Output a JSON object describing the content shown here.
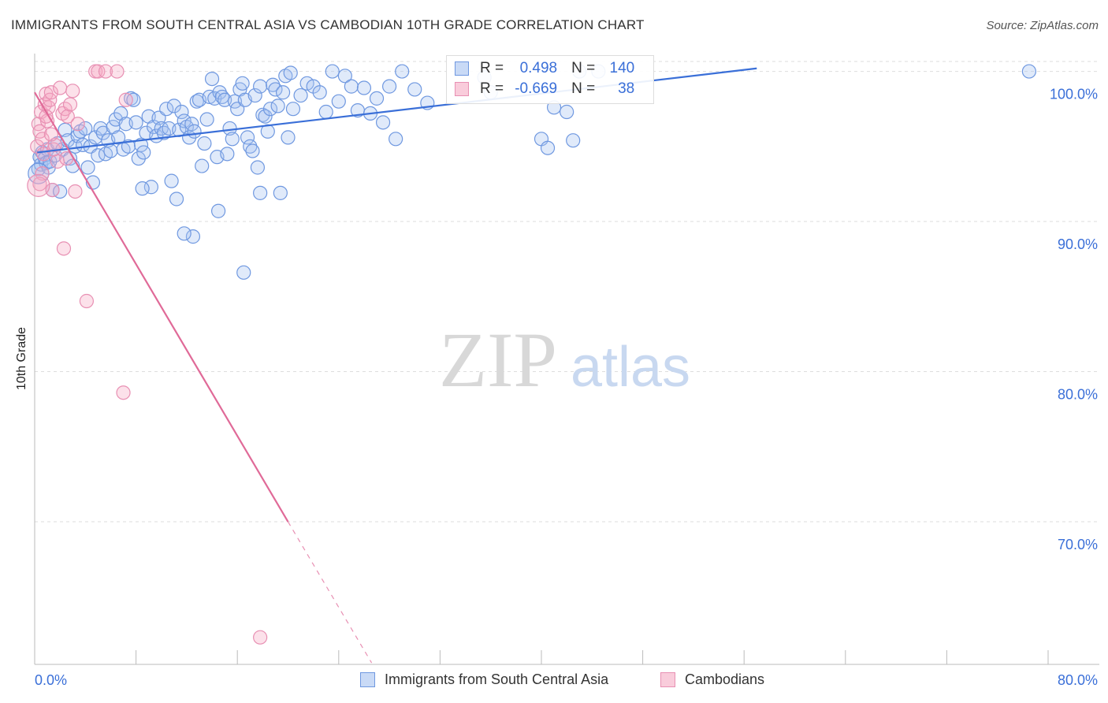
{
  "title": "IMMIGRANTS FROM SOUTH CENTRAL ASIA VS CAMBODIAN 10TH GRADE CORRELATION CHART",
  "source": "Source: ZipAtlas.com",
  "watermark": {
    "zip": "ZIP",
    "atlas": "atlas"
  },
  "colors": {
    "blue": "#3a6fd8",
    "blue_fill": "rgba(165,194,240,0.35)",
    "blue_stroke": "#6f98e0",
    "pink": "#e06a98",
    "pink_fill": "rgba(245,170,195,0.35)",
    "pink_stroke": "#e890b3",
    "axis_label": "#3a6fd8",
    "grid": "#dddddd"
  },
  "legend_top": {
    "rows": [
      {
        "r_label": "R =",
        "r_value": "0.498",
        "n_label": "N =",
        "n_value": "140"
      },
      {
        "r_label": "R =",
        "r_value": "-0.669",
        "n_label": "N =",
        "n_value": "38"
      }
    ]
  },
  "chart_data": {
    "type": "scatter",
    "title": "IMMIGRANTS FROM SOUTH CENTRAL ASIA VS CAMBODIAN 10TH GRADE CORRELATION CHART",
    "xlabel": "",
    "ylabel": "10th Grade",
    "xlim": [
      0,
      80
    ],
    "ylim": [
      60.5,
      101.5
    ],
    "x_tick_labels": [
      "0.0%",
      "80.0%"
    ],
    "y_ticks": [
      70,
      80,
      90,
      100
    ],
    "y_tick_labels": [
      "70.0%",
      "80.0%",
      "90.0%",
      "100.0%"
    ],
    "grid": true,
    "legend_position": "bottom",
    "series": [
      {
        "name": "Immigrants from South Central Asia",
        "color": "blue",
        "trend": {
          "x": [
            0.2,
            57.0
          ],
          "y": [
            94.6,
            100.2
          ]
        },
        "points": [
          [
            0.3,
            93.5
          ],
          [
            0.4,
            94.3
          ],
          [
            0.5,
            93.8
          ],
          [
            0.6,
            94.6
          ],
          [
            0.8,
            94.2
          ],
          [
            0.9,
            93.9
          ],
          [
            1.0,
            94.8
          ],
          [
            1.1,
            93.6
          ],
          [
            1.2,
            94.0
          ],
          [
            1.4,
            92.1
          ],
          [
            1.6,
            94.4
          ],
          [
            1.8,
            95.2
          ],
          [
            2.0,
            92.0
          ],
          [
            2.2,
            94.8
          ],
          [
            2.4,
            96.1
          ],
          [
            2.6,
            95.4
          ],
          [
            2.8,
            94.2
          ],
          [
            3.0,
            93.7
          ],
          [
            3.2,
            95.0
          ],
          [
            3.4,
            95.7
          ],
          [
            3.6,
            96.0
          ],
          [
            3.8,
            95.1
          ],
          [
            4.0,
            96.2
          ],
          [
            4.2,
            93.6
          ],
          [
            4.4,
            95.0
          ],
          [
            4.6,
            92.6
          ],
          [
            4.8,
            95.6
          ],
          [
            5.0,
            94.4
          ],
          [
            5.2,
            96.2
          ],
          [
            5.4,
            95.9
          ],
          [
            5.6,
            94.5
          ],
          [
            5.8,
            95.4
          ],
          [
            6.0,
            94.7
          ],
          [
            6.2,
            96.3
          ],
          [
            6.4,
            96.8
          ],
          [
            6.6,
            95.6
          ],
          [
            6.8,
            97.2
          ],
          [
            7.0,
            94.8
          ],
          [
            7.2,
            96.5
          ],
          [
            7.4,
            95.0
          ],
          [
            7.6,
            98.2
          ],
          [
            7.8,
            98.1
          ],
          [
            8.0,
            96.6
          ],
          [
            8.2,
            94.2
          ],
          [
            8.4,
            95.1
          ],
          [
            8.6,
            94.6
          ],
          [
            8.8,
            95.9
          ],
          [
            9.0,
            97.0
          ],
          [
            9.2,
            92.3
          ],
          [
            9.4,
            96.3
          ],
          [
            9.6,
            95.7
          ],
          [
            9.8,
            96.9
          ],
          [
            10.0,
            96.2
          ],
          [
            10.2,
            95.9
          ],
          [
            10.4,
            97.5
          ],
          [
            10.6,
            96.2
          ],
          [
            10.8,
            92.7
          ],
          [
            11.0,
            97.7
          ],
          [
            11.2,
            91.5
          ],
          [
            11.4,
            96.1
          ],
          [
            11.6,
            97.3
          ],
          [
            11.8,
            96.7
          ],
          [
            12.0,
            96.3
          ],
          [
            12.2,
            95.6
          ],
          [
            12.4,
            96.5
          ],
          [
            12.6,
            96.0
          ],
          [
            12.8,
            98.0
          ],
          [
            13.0,
            98.1
          ],
          [
            13.2,
            93.7
          ],
          [
            13.4,
            95.2
          ],
          [
            13.6,
            96.8
          ],
          [
            13.8,
            98.3
          ],
          [
            14.0,
            99.5
          ],
          [
            14.2,
            98.2
          ],
          [
            14.4,
            94.3
          ],
          [
            14.6,
            98.6
          ],
          [
            14.8,
            98.3
          ],
          [
            15.0,
            98.1
          ],
          [
            15.2,
            94.5
          ],
          [
            15.4,
            96.2
          ],
          [
            15.6,
            95.5
          ],
          [
            15.8,
            98.0
          ],
          [
            16.0,
            97.5
          ],
          [
            16.2,
            98.8
          ],
          [
            16.4,
            99.2
          ],
          [
            16.6,
            98.1
          ],
          [
            16.8,
            95.6
          ],
          [
            17.0,
            95.0
          ],
          [
            17.2,
            94.7
          ],
          [
            17.4,
            98.4
          ],
          [
            17.6,
            93.6
          ],
          [
            17.8,
            99.0
          ],
          [
            18.0,
            97.1
          ],
          [
            18.2,
            97.0
          ],
          [
            18.4,
            96.0
          ],
          [
            18.6,
            97.5
          ],
          [
            18.8,
            99.1
          ],
          [
            19.0,
            98.8
          ],
          [
            19.2,
            97.7
          ],
          [
            19.4,
            91.9
          ],
          [
            19.6,
            98.6
          ],
          [
            19.8,
            99.7
          ],
          [
            20.0,
            95.6
          ],
          [
            20.2,
            99.9
          ],
          [
            20.4,
            97.5
          ],
          [
            21.0,
            98.4
          ],
          [
            21.5,
            99.2
          ],
          [
            22.0,
            99.0
          ],
          [
            22.5,
            98.6
          ],
          [
            23.0,
            97.3
          ],
          [
            23.5,
            100.0
          ],
          [
            24.0,
            98.0
          ],
          [
            24.5,
            99.7
          ],
          [
            25.0,
            99.0
          ],
          [
            25.5,
            97.4
          ],
          [
            26.0,
            98.9
          ],
          [
            26.5,
            97.2
          ],
          [
            27.0,
            98.2
          ],
          [
            27.5,
            96.6
          ],
          [
            28.0,
            99.0
          ],
          [
            28.5,
            95.5
          ],
          [
            29.0,
            100.0
          ],
          [
            30.0,
            98.8
          ],
          [
            31.0,
            97.9
          ],
          [
            35.5,
            99.6
          ],
          [
            36.0,
            98.6
          ],
          [
            40.0,
            95.5
          ],
          [
            40.5,
            94.9
          ],
          [
            41.0,
            97.6
          ],
          [
            42.0,
            97.3
          ],
          [
            42.5,
            95.4
          ],
          [
            43.0,
            100.0
          ],
          [
            44.5,
            100.0
          ],
          [
            78.5,
            100.0
          ],
          [
            8.5,
            92.2
          ],
          [
            12.5,
            89.0
          ],
          [
            11.8,
            89.2
          ],
          [
            16.5,
            86.6
          ],
          [
            14.5,
            90.7
          ],
          [
            17.8,
            91.9
          ]
        ]
      },
      {
        "name": "Cambodians",
        "color": "pink",
        "trend": {
          "x": [
            0.0,
            20.0
          ],
          "y": [
            98.6,
            70.0
          ]
        },
        "trend_dashed": {
          "x": [
            20.0,
            26.6
          ],
          "y": [
            70.0,
            60.6
          ]
        },
        "points": [
          [
            0.2,
            95.0
          ],
          [
            0.3,
            96.5
          ],
          [
            0.4,
            96.0
          ],
          [
            0.5,
            97.3
          ],
          [
            0.6,
            95.5
          ],
          [
            0.7,
            94.5
          ],
          [
            0.8,
            97.8
          ],
          [
            0.9,
            98.5
          ],
          [
            1.0,
            96.7
          ],
          [
            1.1,
            97.6
          ],
          [
            1.2,
            98.1
          ],
          [
            1.3,
            98.6
          ],
          [
            1.4,
            92.1
          ],
          [
            1.5,
            94.8
          ],
          [
            1.6,
            95.1
          ],
          [
            2.0,
            98.9
          ],
          [
            2.2,
            97.2
          ],
          [
            2.4,
            97.5
          ],
          [
            2.6,
            97.0
          ],
          [
            2.8,
            97.8
          ],
          [
            3.0,
            98.7
          ],
          [
            3.2,
            92.0
          ],
          [
            3.4,
            96.5
          ],
          [
            2.3,
            88.2
          ],
          [
            4.1,
            84.7
          ],
          [
            4.8,
            100.0
          ],
          [
            5.0,
            100.0
          ],
          [
            5.6,
            100.0
          ],
          [
            6.5,
            100.0
          ],
          [
            7.2,
            98.1
          ],
          [
            7.0,
            78.6
          ],
          [
            17.8,
            62.3
          ],
          [
            0.6,
            93.2
          ],
          [
            1.8,
            94.0
          ],
          [
            0.9,
            97.0
          ],
          [
            2.5,
            94.2
          ],
          [
            1.3,
            95.8
          ],
          [
            0.4,
            92.5
          ]
        ]
      }
    ]
  }
}
